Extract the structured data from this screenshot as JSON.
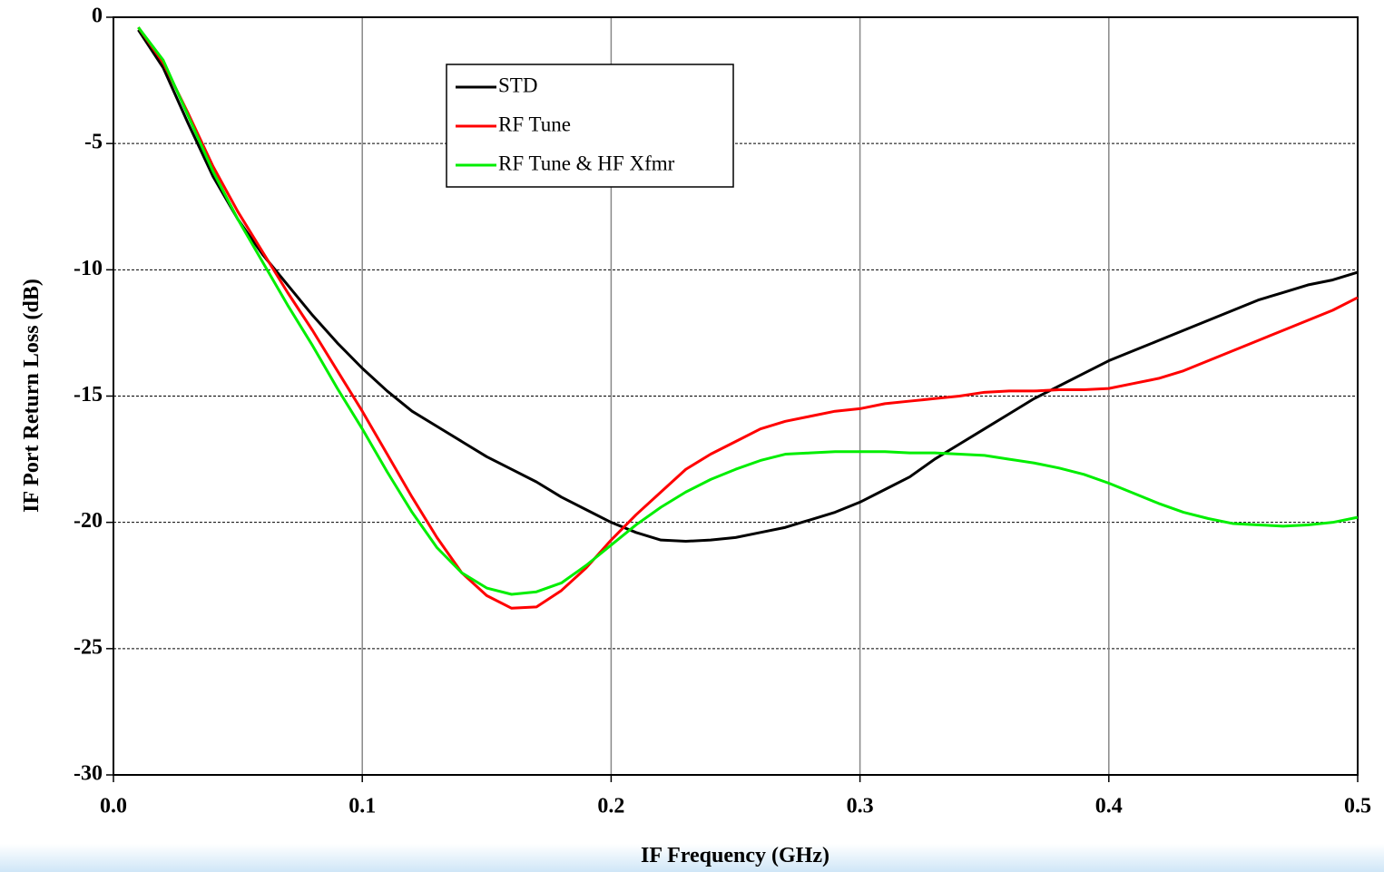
{
  "chart_data": {
    "type": "line",
    "xlabel": "IF Frequency (GHz)",
    "ylabel": "IF Port Return Loss (dB)",
    "x": [
      0.01,
      0.02,
      0.03,
      0.04,
      0.05,
      0.06,
      0.07,
      0.08,
      0.09,
      0.1,
      0.11,
      0.12,
      0.13,
      0.14,
      0.15,
      0.16,
      0.17,
      0.18,
      0.19,
      0.2,
      0.21,
      0.22,
      0.23,
      0.24,
      0.25,
      0.26,
      0.27,
      0.28,
      0.29,
      0.3,
      0.31,
      0.32,
      0.33,
      0.34,
      0.35,
      0.36,
      0.37,
      0.38,
      0.39,
      0.4,
      0.41,
      0.42,
      0.43,
      0.44,
      0.45,
      0.46,
      0.47,
      0.48,
      0.49,
      0.5
    ],
    "series": [
      {
        "name": "STD",
        "color": "#000000",
        "values": [
          -0.5,
          -2.0,
          -4.2,
          -6.3,
          -8.0,
          -9.4,
          -10.6,
          -11.8,
          -12.9,
          -13.9,
          -14.8,
          -15.6,
          -16.2,
          -16.8,
          -17.4,
          -17.9,
          -18.4,
          -19.0,
          -19.5,
          -20.0,
          -20.4,
          -20.7,
          -20.75,
          -20.7,
          -20.6,
          -20.4,
          -20.2,
          -19.9,
          -19.6,
          -19.2,
          -18.7,
          -18.2,
          -17.5,
          -16.9,
          -16.3,
          -15.7,
          -15.1,
          -14.6,
          -14.1,
          -13.6,
          -13.2,
          -12.8,
          -12.4,
          -12.0,
          -11.6,
          -11.2,
          -10.9,
          -10.6,
          -10.4,
          -10.1
        ]
      },
      {
        "name": "RF Tune",
        "color": "#ff0000",
        "values": [
          -0.4,
          -1.8,
          -3.8,
          -5.9,
          -7.7,
          -9.3,
          -10.9,
          -12.4,
          -14.0,
          -15.6,
          -17.3,
          -19.0,
          -20.6,
          -22.0,
          -22.9,
          -23.4,
          -23.35,
          -22.7,
          -21.8,
          -20.7,
          -19.7,
          -18.8,
          -17.9,
          -17.3,
          -16.8,
          -16.3,
          -16.0,
          -15.8,
          -15.6,
          -15.5,
          -15.3,
          -15.2,
          -15.1,
          -15.0,
          -14.85,
          -14.8,
          -14.8,
          -14.75,
          -14.75,
          -14.7,
          -14.5,
          -14.3,
          -14.0,
          -13.6,
          -13.2,
          -12.8,
          -12.4,
          -12.0,
          -11.6,
          -11.1
        ]
      },
      {
        "name": "RF Tune & HF Xfmr",
        "color": "#00ee00",
        "values": [
          -0.4,
          -1.7,
          -3.9,
          -6.1,
          -8.0,
          -9.7,
          -11.4,
          -13.0,
          -14.7,
          -16.3,
          -18.0,
          -19.6,
          -21.0,
          -22.0,
          -22.6,
          -22.85,
          -22.75,
          -22.4,
          -21.7,
          -20.9,
          -20.1,
          -19.4,
          -18.8,
          -18.3,
          -17.9,
          -17.55,
          -17.3,
          -17.25,
          -17.2,
          -17.2,
          -17.2,
          -17.25,
          -17.25,
          -17.3,
          -17.35,
          -17.5,
          -17.65,
          -17.85,
          -18.1,
          -18.45,
          -18.85,
          -19.25,
          -19.6,
          -19.85,
          -20.05,
          -20.1,
          -20.15,
          -20.1,
          -20.0,
          -19.8
        ]
      }
    ],
    "xlim": [
      0,
      0.5
    ],
    "xticks": [
      {
        "value": 0,
        "label": "0.0"
      },
      0.1,
      0.2,
      0.3,
      0.4,
      0.5
    ],
    "ylim": [
      -30,
      0
    ],
    "yticks": [
      -30,
      -25,
      -20,
      -15,
      -10,
      -5,
      0
    ],
    "grid": true,
    "legend": "upper center"
  }
}
